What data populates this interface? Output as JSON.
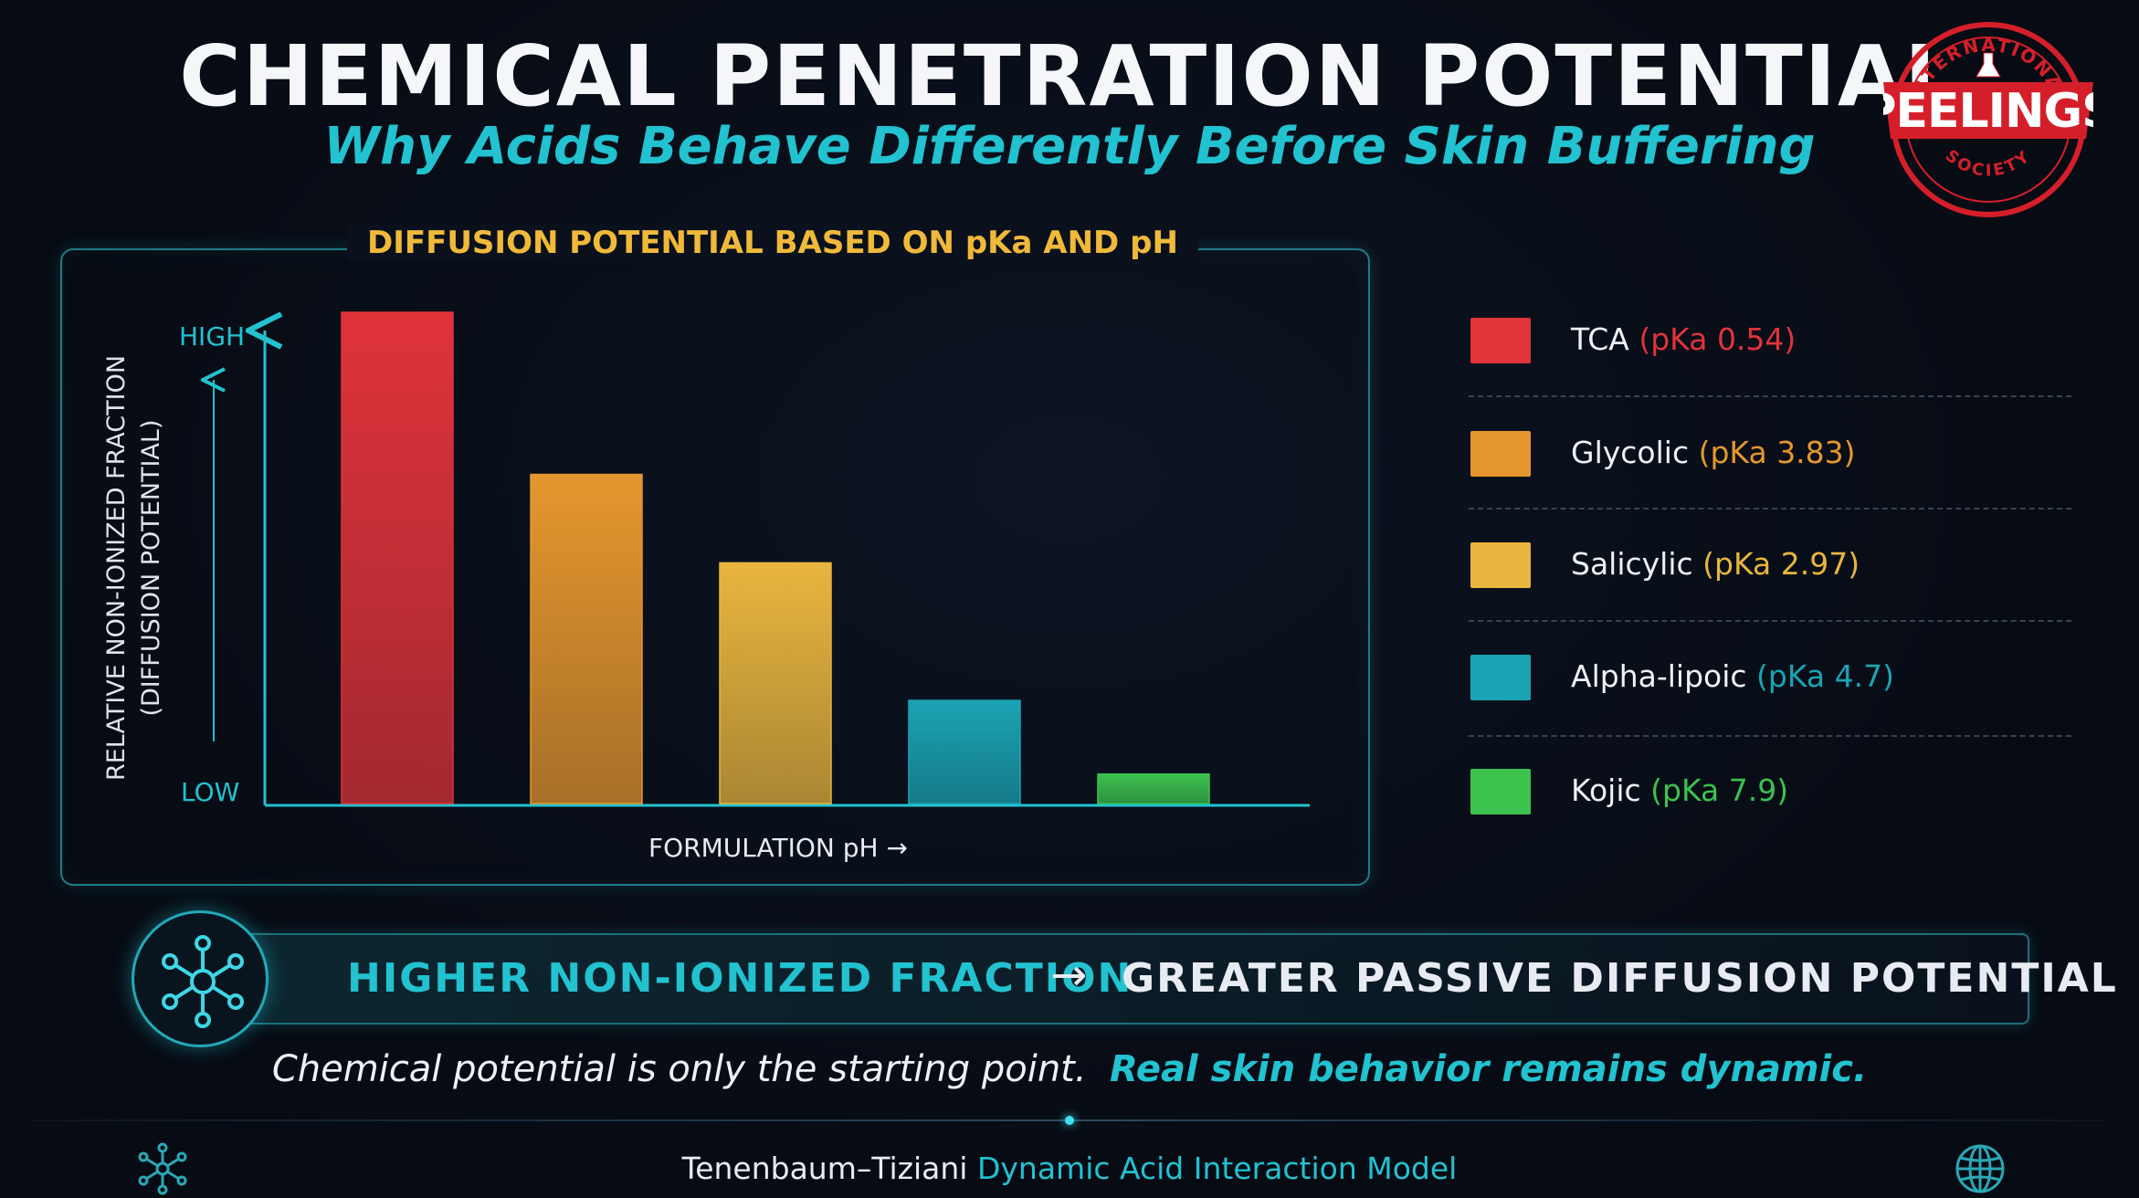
{
  "header": {
    "title": "CHEMICAL PENETRATION POTENTIAL",
    "subtitle": "Why Acids Behave Differently Before Skin Buffering"
  },
  "logo": {
    "top_text": "INTERNATIONAL",
    "main_text": "PEELINGS",
    "bottom_text": "SOCIETY",
    "colors": {
      "ring": "#d41f2a",
      "banner": "#d41f2a",
      "text": "#ffffff"
    }
  },
  "chart_panel": {
    "title": "DIFFUSION POTENTIAL BASED ON pKa AND pH"
  },
  "chart_data": {
    "type": "bar",
    "title": "DIFFUSION POTENTIAL BASED ON pKa AND pH",
    "xlabel": "FORMULATION pH →",
    "ylabel_line1": "RELATIVE NON-IONIZED FRACTION",
    "ylabel_line2": "(DIFFUSION POTENTIAL)",
    "y_high_label": "HIGH",
    "y_low_label": "LOW",
    "ylim": [
      0,
      100
    ],
    "categories": [
      "TCA",
      "Glycolic",
      "Salicylic",
      "Alpha-lipoic",
      "Kojic"
    ],
    "values": [
      100,
      67,
      49,
      21,
      6
    ],
    "colors": [
      "#e0333a",
      "#e5962e",
      "#e8b53e",
      "#1aa3b3",
      "#3cc24f"
    ],
    "legend_position": "right",
    "grid": false
  },
  "legend": [
    {
      "name": "TCA",
      "pka": "(pKa 0.54)",
      "color": "#e0333a"
    },
    {
      "name": "Glycolic",
      "pka": "(pKa 3.83)",
      "color": "#e5962e"
    },
    {
      "name": "Salicylic",
      "pka": "(pKa 2.97)",
      "color": "#e8b53e"
    },
    {
      "name": "Alpha-lipoic",
      "pka": "(pKa 4.7)",
      "color": "#1aa3b3"
    },
    {
      "name": "Kojic",
      "pka": "(pKa 7.9)",
      "color": "#3cc24f"
    }
  ],
  "banner": {
    "left_text": "HIGHER NON-IONIZED FRACTION",
    "arrow": "→",
    "right_text": "GREATER PASSIVE DIFFUSION POTENTIAL",
    "icon": "molecule-icon"
  },
  "caption": {
    "part1": "Chemical potential is only the starting point.",
    "part2": "Real skin behavior remains dynamic."
  },
  "footer": {
    "part1": "Tenenbaum–Tiziani",
    "part2": "Dynamic Acid Interaction Model",
    "left_icon": "molecule-icon",
    "right_icon": "globe-icon"
  },
  "colors": {
    "accent": "#22c2d0",
    "title_gold": "#f0b93a",
    "background": "#070b13"
  }
}
